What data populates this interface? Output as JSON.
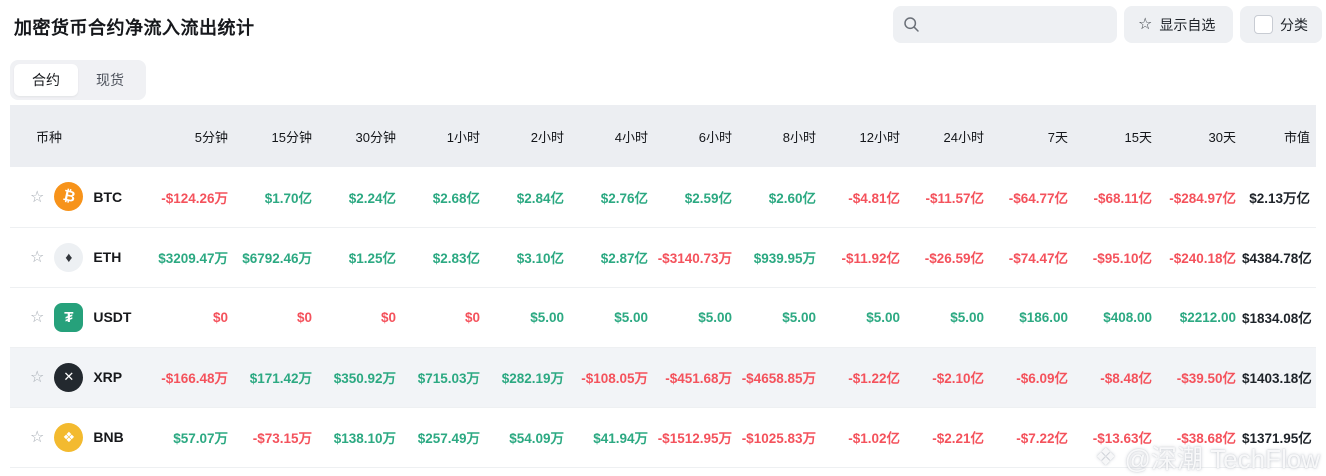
{
  "page": {
    "title": "加密货币合约净流入流出统计"
  },
  "toolbar": {
    "search_placeholder": "",
    "favorites_label": "显示自选",
    "category_label": "分类"
  },
  "tabs": [
    {
      "id": "contract",
      "label": "合约",
      "active": true
    },
    {
      "id": "spot",
      "label": "现货",
      "active": false
    }
  ],
  "colors": {
    "positive": "#2ca982",
    "negative": "#f4525c",
    "market_cap_text": "#1e2329",
    "header_bg": "#eceef2",
    "highlight_row_bg": "#f2f4f7"
  },
  "table": {
    "columns": [
      "币种",
      "5分钟",
      "15分钟",
      "30分钟",
      "1小时",
      "2小时",
      "4小时",
      "6小时",
      "8小时",
      "12小时",
      "24小时",
      "7天",
      "15天",
      "30天",
      "市值"
    ],
    "rows": [
      {
        "symbol": "BTC",
        "icon": "btc-coin-icon",
        "icon_key": "btc",
        "highlighted": false,
        "values": [
          {
            "t": "-$124.26万",
            "s": "neg"
          },
          {
            "t": "$1.70亿",
            "s": "pos"
          },
          {
            "t": "$2.24亿",
            "s": "pos"
          },
          {
            "t": "$2.68亿",
            "s": "pos"
          },
          {
            "t": "$2.84亿",
            "s": "pos"
          },
          {
            "t": "$2.76亿",
            "s": "pos"
          },
          {
            "t": "$2.59亿",
            "s": "pos"
          },
          {
            "t": "$2.60亿",
            "s": "pos"
          },
          {
            "t": "-$4.81亿",
            "s": "neg"
          },
          {
            "t": "-$11.57亿",
            "s": "neg"
          },
          {
            "t": "-$64.77亿",
            "s": "neg"
          },
          {
            "t": "-$68.11亿",
            "s": "neg"
          },
          {
            "t": "-$284.97亿",
            "s": "neg"
          }
        ],
        "market_cap": "$2.13万亿"
      },
      {
        "symbol": "ETH",
        "icon": "eth-coin-icon",
        "icon_key": "eth",
        "highlighted": false,
        "values": [
          {
            "t": "$3209.47万",
            "s": "pos"
          },
          {
            "t": "$6792.46万",
            "s": "pos"
          },
          {
            "t": "$1.25亿",
            "s": "pos"
          },
          {
            "t": "$2.83亿",
            "s": "pos"
          },
          {
            "t": "$3.10亿",
            "s": "pos"
          },
          {
            "t": "$2.87亿",
            "s": "pos"
          },
          {
            "t": "-$3140.73万",
            "s": "neg"
          },
          {
            "t": "$939.95万",
            "s": "pos"
          },
          {
            "t": "-$11.92亿",
            "s": "neg"
          },
          {
            "t": "-$26.59亿",
            "s": "neg"
          },
          {
            "t": "-$74.47亿",
            "s": "neg"
          },
          {
            "t": "-$95.10亿",
            "s": "neg"
          },
          {
            "t": "-$240.18亿",
            "s": "neg"
          }
        ],
        "market_cap": "$4384.78亿"
      },
      {
        "symbol": "USDT",
        "icon": "usdt-coin-icon",
        "icon_key": "usdt",
        "highlighted": false,
        "values": [
          {
            "t": "$0",
            "s": "neg"
          },
          {
            "t": "$0",
            "s": "neg"
          },
          {
            "t": "$0",
            "s": "neg"
          },
          {
            "t": "$0",
            "s": "neg"
          },
          {
            "t": "$5.00",
            "s": "pos"
          },
          {
            "t": "$5.00",
            "s": "pos"
          },
          {
            "t": "$5.00",
            "s": "pos"
          },
          {
            "t": "$5.00",
            "s": "pos"
          },
          {
            "t": "$5.00",
            "s": "pos"
          },
          {
            "t": "$5.00",
            "s": "pos"
          },
          {
            "t": "$186.00",
            "s": "pos"
          },
          {
            "t": "$408.00",
            "s": "pos"
          },
          {
            "t": "$2212.00",
            "s": "pos"
          }
        ],
        "market_cap": "$1834.08亿"
      },
      {
        "symbol": "XRP",
        "icon": "xrp-coin-icon",
        "icon_key": "xrp",
        "highlighted": true,
        "values": [
          {
            "t": "-$166.48万",
            "s": "neg"
          },
          {
            "t": "$171.42万",
            "s": "pos"
          },
          {
            "t": "$350.92万",
            "s": "pos"
          },
          {
            "t": "$715.03万",
            "s": "pos"
          },
          {
            "t": "$282.19万",
            "s": "pos"
          },
          {
            "t": "-$108.05万",
            "s": "neg"
          },
          {
            "t": "-$451.68万",
            "s": "neg"
          },
          {
            "t": "-$4658.85万",
            "s": "neg"
          },
          {
            "t": "-$1.22亿",
            "s": "neg"
          },
          {
            "t": "-$2.10亿",
            "s": "neg"
          },
          {
            "t": "-$6.09亿",
            "s": "neg"
          },
          {
            "t": "-$8.48亿",
            "s": "neg"
          },
          {
            "t": "-$39.50亿",
            "s": "neg"
          }
        ],
        "market_cap": "$1403.18亿"
      },
      {
        "symbol": "BNB",
        "icon": "bnb-coin-icon",
        "icon_key": "bnb",
        "highlighted": false,
        "values": [
          {
            "t": "$57.07万",
            "s": "pos"
          },
          {
            "t": "-$73.15万",
            "s": "neg"
          },
          {
            "t": "$138.10万",
            "s": "pos"
          },
          {
            "t": "$257.49万",
            "s": "pos"
          },
          {
            "t": "$54.09万",
            "s": "pos"
          },
          {
            "t": "$41.94万",
            "s": "pos"
          },
          {
            "t": "-$1512.95万",
            "s": "neg"
          },
          {
            "t": "-$1025.83万",
            "s": "neg"
          },
          {
            "t": "-$1.02亿",
            "s": "neg"
          },
          {
            "t": "-$2.21亿",
            "s": "neg"
          },
          {
            "t": "-$7.22亿",
            "s": "neg"
          },
          {
            "t": "-$13.63亿",
            "s": "neg"
          },
          {
            "t": "-$38.68亿",
            "s": "neg"
          }
        ],
        "market_cap": "$1371.95亿"
      }
    ]
  },
  "watermark": {
    "icon": "diamond-logo-icon",
    "text": "@深潮 TechFlow"
  }
}
